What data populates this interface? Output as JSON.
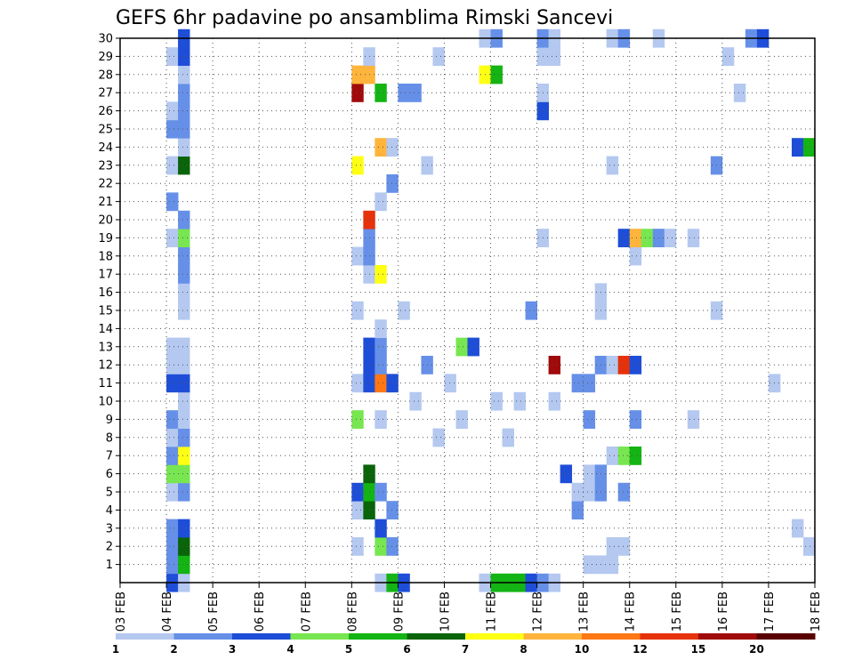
{
  "chart_data": {
    "type": "heatmap",
    "title": "GEFS 6hr padavine po ansamblima Rimski Sancevi",
    "x_tick_labels": [
      "03 FEB",
      "04 FEB",
      "05 FEB",
      "06 FEB",
      "07 FEB",
      "08 FEB",
      "09 FEB",
      "10 FEB",
      "11 FEB",
      "12 FEB",
      "13 FEB",
      "14 FEB",
      "15 FEB",
      "16 FEB",
      "17 FEB",
      "18 FEB"
    ],
    "y_tick_labels": [
      "1",
      "2",
      "3",
      "4",
      "5",
      "6",
      "7",
      "8",
      "9",
      "10",
      "11",
      "12",
      "13",
      "14",
      "15",
      "16",
      "17",
      "18",
      "19",
      "20",
      "21",
      "22",
      "23",
      "24",
      "25",
      "26",
      "27",
      "28",
      "29",
      "30"
    ],
    "time_steps_per_day": 4,
    "ylim": [
      0,
      30
    ],
    "grid": true,
    "legend": {
      "placement": "bottom",
      "labels": [
        "1",
        "2",
        "3",
        "4",
        "5",
        "6",
        "7",
        "8",
        "10",
        "12",
        "15",
        "20"
      ],
      "colors": [
        "#b4c8f0",
        "#6690e8",
        "#1e4ed8",
        "#78e650",
        "#14b414",
        "#0a640a",
        "#ffff14",
        "#ffb43c",
        "#ff7814",
        "#e6320a",
        "#a00a0a",
        "#5a0000"
      ]
    },
    "cells": [
      {
        "t": "04 FEB 00Z",
        "member": 0,
        "mm": 3
      },
      {
        "t": "04 FEB 06Z",
        "member": 0,
        "mm": 1
      },
      {
        "t": "08 FEB 12Z",
        "member": 0,
        "mm": 1
      },
      {
        "t": "08 FEB 18Z",
        "member": 0,
        "mm": 5
      },
      {
        "t": "09 FEB 00Z",
        "member": 0,
        "mm": 3
      },
      {
        "t": "10 FEB 18Z",
        "member": 0,
        "mm": 1
      },
      {
        "t": "11 FEB 00Z",
        "member": 0,
        "mm": 5
      },
      {
        "t": "11 FEB 06Z",
        "member": 0,
        "mm": 5
      },
      {
        "t": "11 FEB 12Z",
        "member": 0,
        "mm": 5
      },
      {
        "t": "11 FEB 18Z",
        "member": 0,
        "mm": 3
      },
      {
        "t": "12 FEB 00Z",
        "member": 0,
        "mm": 2
      },
      {
        "t": "12 FEB 06Z",
        "member": 0,
        "mm": 1
      },
      {
        "t": "04 FEB 00Z",
        "member": 1,
        "mm": 2
      },
      {
        "t": "04 FEB 06Z",
        "member": 1,
        "mm": 5
      },
      {
        "t": "13 FEB 00Z",
        "member": 1,
        "mm": 1
      },
      {
        "t": "13 FEB 06Z",
        "member": 1,
        "mm": 1
      },
      {
        "t": "13 FEB 12Z",
        "member": 1,
        "mm": 1
      },
      {
        "t": "04 FEB 00Z",
        "member": 2,
        "mm": 2
      },
      {
        "t": "04 FEB 06Z",
        "member": 2,
        "mm": 6
      },
      {
        "t": "08 FEB 00Z",
        "member": 2,
        "mm": 1
      },
      {
        "t": "08 FEB 12Z",
        "member": 2,
        "mm": 4
      },
      {
        "t": "08 FEB 18Z",
        "member": 2,
        "mm": 2
      },
      {
        "t": "13 FEB 12Z",
        "member": 2,
        "mm": 1
      },
      {
        "t": "13 FEB 18Z",
        "member": 2,
        "mm": 1
      },
      {
        "t": "17 FEB 18Z",
        "member": 2,
        "mm": 1
      },
      {
        "t": "04 FEB 00Z",
        "member": 3,
        "mm": 2
      },
      {
        "t": "04 FEB 06Z",
        "member": 3,
        "mm": 3
      },
      {
        "t": "08 FEB 12Z",
        "member": 3,
        "mm": 3
      },
      {
        "t": "17 FEB 12Z",
        "member": 3,
        "mm": 1
      },
      {
        "t": "08 FEB 00Z",
        "member": 4,
        "mm": 1
      },
      {
        "t": "08 FEB 06Z",
        "member": 4,
        "mm": 6
      },
      {
        "t": "08 FEB 18Z",
        "member": 4,
        "mm": 2
      },
      {
        "t": "12 FEB 18Z",
        "member": 4,
        "mm": 2
      },
      {
        "t": "04 FEB 00Z",
        "member": 5,
        "mm": 1
      },
      {
        "t": "04 FEB 06Z",
        "member": 5,
        "mm": 2
      },
      {
        "t": "08 FEB 00Z",
        "member": 5,
        "mm": 3
      },
      {
        "t": "08 FEB 06Z",
        "member": 5,
        "mm": 5
      },
      {
        "t": "08 FEB 12Z",
        "member": 5,
        "mm": 2
      },
      {
        "t": "12 FEB 18Z",
        "member": 5,
        "mm": 1
      },
      {
        "t": "13 FEB 00Z",
        "member": 5,
        "mm": 1
      },
      {
        "t": "13 FEB 06Z",
        "member": 5,
        "mm": 2
      },
      {
        "t": "13 FEB 18Z",
        "member": 5,
        "mm": 2
      },
      {
        "t": "04 FEB 00Z",
        "member": 6,
        "mm": 4
      },
      {
        "t": "04 FEB 06Z",
        "member": 6,
        "mm": 4
      },
      {
        "t": "08 FEB 06Z",
        "member": 6,
        "mm": 6
      },
      {
        "t": "12 FEB 12Z",
        "member": 6,
        "mm": 3
      },
      {
        "t": "13 FEB 00Z",
        "member": 6,
        "mm": 1
      },
      {
        "t": "13 FEB 06Z",
        "member": 6,
        "mm": 2
      },
      {
        "t": "04 FEB 00Z",
        "member": 7,
        "mm": 2
      },
      {
        "t": "04 FEB 06Z",
        "member": 7,
        "mm": 7
      },
      {
        "t": "13 FEB 12Z",
        "member": 7,
        "mm": 1
      },
      {
        "t": "13 FEB 18Z",
        "member": 7,
        "mm": 4
      },
      {
        "t": "14 FEB 00Z",
        "member": 7,
        "mm": 5
      },
      {
        "t": "04 FEB 00Z",
        "member": 8,
        "mm": 1
      },
      {
        "t": "04 FEB 06Z",
        "member": 8,
        "mm": 2
      },
      {
        "t": "09 FEB 18Z",
        "member": 8,
        "mm": 1
      },
      {
        "t": "11 FEB 06Z",
        "member": 8,
        "mm": 1
      },
      {
        "t": "04 FEB 00Z",
        "member": 9,
        "mm": 2
      },
      {
        "t": "04 FEB 06Z",
        "member": 9,
        "mm": 1
      },
      {
        "t": "08 FEB 00Z",
        "member": 9,
        "mm": 4
      },
      {
        "t": "08 FEB 12Z",
        "member": 9,
        "mm": 1
      },
      {
        "t": "10 FEB 06Z",
        "member": 9,
        "mm": 1
      },
      {
        "t": "13 FEB 00Z",
        "member": 9,
        "mm": 2
      },
      {
        "t": "14 FEB 00Z",
        "member": 9,
        "mm": 2
      },
      {
        "t": "15 FEB 06Z",
        "member": 9,
        "mm": 1
      },
      {
        "t": "04 FEB 06Z",
        "member": 10,
        "mm": 1
      },
      {
        "t": "09 FEB 06Z",
        "member": 10,
        "mm": 1
      },
      {
        "t": "11 FEB 00Z",
        "member": 10,
        "mm": 1
      },
      {
        "t": "11 FEB 12Z",
        "member": 10,
        "mm": 1
      },
      {
        "t": "12 FEB 06Z",
        "member": 10,
        "mm": 1
      },
      {
        "t": "04 FEB 00Z",
        "member": 11,
        "mm": 3
      },
      {
        "t": "04 FEB 06Z",
        "member": 11,
        "mm": 3
      },
      {
        "t": "08 FEB 00Z",
        "member": 11,
        "mm": 1
      },
      {
        "t": "08 FEB 06Z",
        "member": 11,
        "mm": 3
      },
      {
        "t": "08 FEB 12Z",
        "member": 11,
        "mm": 11
      },
      {
        "t": "08 FEB 18Z",
        "member": 11,
        "mm": 3
      },
      {
        "t": "10 FEB 00Z",
        "member": 11,
        "mm": 1
      },
      {
        "t": "12 FEB 18Z",
        "member": 11,
        "mm": 2
      },
      {
        "t": "13 FEB 00Z",
        "member": 11,
        "mm": 2
      },
      {
        "t": "17 FEB 00Z",
        "member": 11,
        "mm": 1
      },
      {
        "t": "04 FEB 00Z",
        "member": 12,
        "mm": 1
      },
      {
        "t": "04 FEB 06Z",
        "member": 12,
        "mm": 1
      },
      {
        "t": "08 FEB 06Z",
        "member": 12,
        "mm": 3
      },
      {
        "t": "08 FEB 12Z",
        "member": 12,
        "mm": 2
      },
      {
        "t": "09 FEB 12Z",
        "member": 12,
        "mm": 2
      },
      {
        "t": "12 FEB 06Z",
        "member": 12,
        "mm": 18
      },
      {
        "t": "13 FEB 06Z",
        "member": 12,
        "mm": 2
      },
      {
        "t": "13 FEB 12Z",
        "member": 12,
        "mm": 1
      },
      {
        "t": "13 FEB 18Z",
        "member": 12,
        "mm": 13
      },
      {
        "t": "14 FEB 00Z",
        "member": 12,
        "mm": 3
      },
      {
        "t": "04 FEB 00Z",
        "member": 13,
        "mm": 1
      },
      {
        "t": "04 FEB 06Z",
        "member": 13,
        "mm": 1
      },
      {
        "t": "08 FEB 06Z",
        "member": 13,
        "mm": 3
      },
      {
        "t": "08 FEB 12Z",
        "member": 13,
        "mm": 2
      },
      {
        "t": "10 FEB 06Z",
        "member": 13,
        "mm": 4
      },
      {
        "t": "10 FEB 12Z",
        "member": 13,
        "mm": 3
      },
      {
        "t": "08 FEB 12Z",
        "member": 14,
        "mm": 1
      },
      {
        "t": "04 FEB 06Z",
        "member": 15,
        "mm": 1
      },
      {
        "t": "08 FEB 00Z",
        "member": 15,
        "mm": 1
      },
      {
        "t": "09 FEB 00Z",
        "member": 15,
        "mm": 1
      },
      {
        "t": "11 FEB 18Z",
        "member": 15,
        "mm": 2
      },
      {
        "t": "13 FEB 06Z",
        "member": 15,
        "mm": 1
      },
      {
        "t": "15 FEB 18Z",
        "member": 15,
        "mm": 1
      },
      {
        "t": "04 FEB 06Z",
        "member": 16,
        "mm": 1
      },
      {
        "t": "13 FEB 06Z",
        "member": 16,
        "mm": 1
      },
      {
        "t": "04 FEB 06Z",
        "member": 17,
        "mm": 2
      },
      {
        "t": "08 FEB 06Z",
        "member": 17,
        "mm": 1
      },
      {
        "t": "08 FEB 12Z",
        "member": 17,
        "mm": 7
      },
      {
        "t": "04 FEB 06Z",
        "member": 18,
        "mm": 2
      },
      {
        "t": "08 FEB 00Z",
        "member": 18,
        "mm": 1
      },
      {
        "t": "08 FEB 06Z",
        "member": 18,
        "mm": 2
      },
      {
        "t": "14 FEB 00Z",
        "member": 18,
        "mm": 1
      },
      {
        "t": "04 FEB 00Z",
        "member": 19,
        "mm": 1
      },
      {
        "t": "04 FEB 06Z",
        "member": 19,
        "mm": 4
      },
      {
        "t": "08 FEB 06Z",
        "member": 19,
        "mm": 2
      },
      {
        "t": "12 FEB 00Z",
        "member": 19,
        "mm": 1
      },
      {
        "t": "13 FEB 18Z",
        "member": 19,
        "mm": 3
      },
      {
        "t": "14 FEB 00Z",
        "member": 19,
        "mm": 8
      },
      {
        "t": "14 FEB 06Z",
        "member": 19,
        "mm": 4
      },
      {
        "t": "14 FEB 12Z",
        "member": 19,
        "mm": 2
      },
      {
        "t": "14 FEB 18Z",
        "member": 19,
        "mm": 1
      },
      {
        "t": "15 FEB 06Z",
        "member": 19,
        "mm": 1
      },
      {
        "t": "04 FEB 06Z",
        "member": 20,
        "mm": 2
      },
      {
        "t": "08 FEB 06Z",
        "member": 20,
        "mm": 13
      },
      {
        "t": "04 FEB 00Z",
        "member": 21,
        "mm": 2
      },
      {
        "t": "08 FEB 12Z",
        "member": 21,
        "mm": 1
      },
      {
        "t": "08 FEB 18Z",
        "member": 22,
        "mm": 2
      },
      {
        "t": "04 FEB 00Z",
        "member": 23,
        "mm": 1
      },
      {
        "t": "04 FEB 06Z",
        "member": 23,
        "mm": 6
      },
      {
        "t": "08 FEB 00Z",
        "member": 23,
        "mm": 7
      },
      {
        "t": "09 FEB 12Z",
        "member": 23,
        "mm": 1
      },
      {
        "t": "13 FEB 12Z",
        "member": 23,
        "mm": 1
      },
      {
        "t": "15 FEB 18Z",
        "member": 23,
        "mm": 2
      },
      {
        "t": "04 FEB 06Z",
        "member": 24,
        "mm": 1
      },
      {
        "t": "08 FEB 12Z",
        "member": 24,
        "mm": 9
      },
      {
        "t": "08 FEB 18Z",
        "member": 24,
        "mm": 1
      },
      {
        "t": "17 FEB 12Z",
        "member": 24,
        "mm": 3
      },
      {
        "t": "17 FEB 18Z",
        "member": 24,
        "mm": 5
      },
      {
        "t": "04 FEB 00Z",
        "member": 25,
        "mm": 2
      },
      {
        "t": "04 FEB 06Z",
        "member": 25,
        "mm": 2
      },
      {
        "t": "04 FEB 00Z",
        "member": 26,
        "mm": 1
      },
      {
        "t": "04 FEB 06Z",
        "member": 26,
        "mm": 2
      },
      {
        "t": "12 FEB 00Z",
        "member": 26,
        "mm": 3
      },
      {
        "t": "04 FEB 06Z",
        "member": 27,
        "mm": 2
      },
      {
        "t": "08 FEB 00Z",
        "member": 27,
        "mm": 18
      },
      {
        "t": "08 FEB 12Z",
        "member": 27,
        "mm": 5
      },
      {
        "t": "09 FEB 00Z",
        "member": 27,
        "mm": 2
      },
      {
        "t": "09 FEB 06Z",
        "member": 27,
        "mm": 2
      },
      {
        "t": "12 FEB 00Z",
        "member": 27,
        "mm": 1
      },
      {
        "t": "16 FEB 06Z",
        "member": 27,
        "mm": 1
      },
      {
        "t": "04 FEB 06Z",
        "member": 28,
        "mm": 1
      },
      {
        "t": "08 FEB 00Z",
        "member": 28,
        "mm": 9
      },
      {
        "t": "08 FEB 06Z",
        "member": 28,
        "mm": 9
      },
      {
        "t": "10 FEB 18Z",
        "member": 28,
        "mm": 7
      },
      {
        "t": "11 FEB 00Z",
        "member": 28,
        "mm": 5
      },
      {
        "t": "04 FEB 00Z",
        "member": 29,
        "mm": 1
      },
      {
        "t": "04 FEB 06Z",
        "member": 29,
        "mm": 3
      },
      {
        "t": "08 FEB 06Z",
        "member": 29,
        "mm": 1
      },
      {
        "t": "09 FEB 18Z",
        "member": 29,
        "mm": 1
      },
      {
        "t": "12 FEB 00Z",
        "member": 29,
        "mm": 1
      },
      {
        "t": "12 FEB 06Z",
        "member": 29,
        "mm": 1
      },
      {
        "t": "16 FEB 00Z",
        "member": 29,
        "mm": 1
      },
      {
        "t": "04 FEB 06Z",
        "member": 30,
        "mm": 3
      },
      {
        "t": "10 FEB 18Z",
        "member": 30,
        "mm": 1
      },
      {
        "t": "11 FEB 00Z",
        "member": 30,
        "mm": 2
      },
      {
        "t": "12 FEB 00Z",
        "member": 30,
        "mm": 2
      },
      {
        "t": "12 FEB 06Z",
        "member": 30,
        "mm": 1
      },
      {
        "t": "13 FEB 12Z",
        "member": 30,
        "mm": 1
      },
      {
        "t": "13 FEB 18Z",
        "member": 30,
        "mm": 2
      },
      {
        "t": "14 FEB 12Z",
        "member": 30,
        "mm": 1
      },
      {
        "t": "16 FEB 12Z",
        "member": 30,
        "mm": 2
      },
      {
        "t": "16 FEB 18Z",
        "member": 30,
        "mm": 3
      }
    ]
  }
}
